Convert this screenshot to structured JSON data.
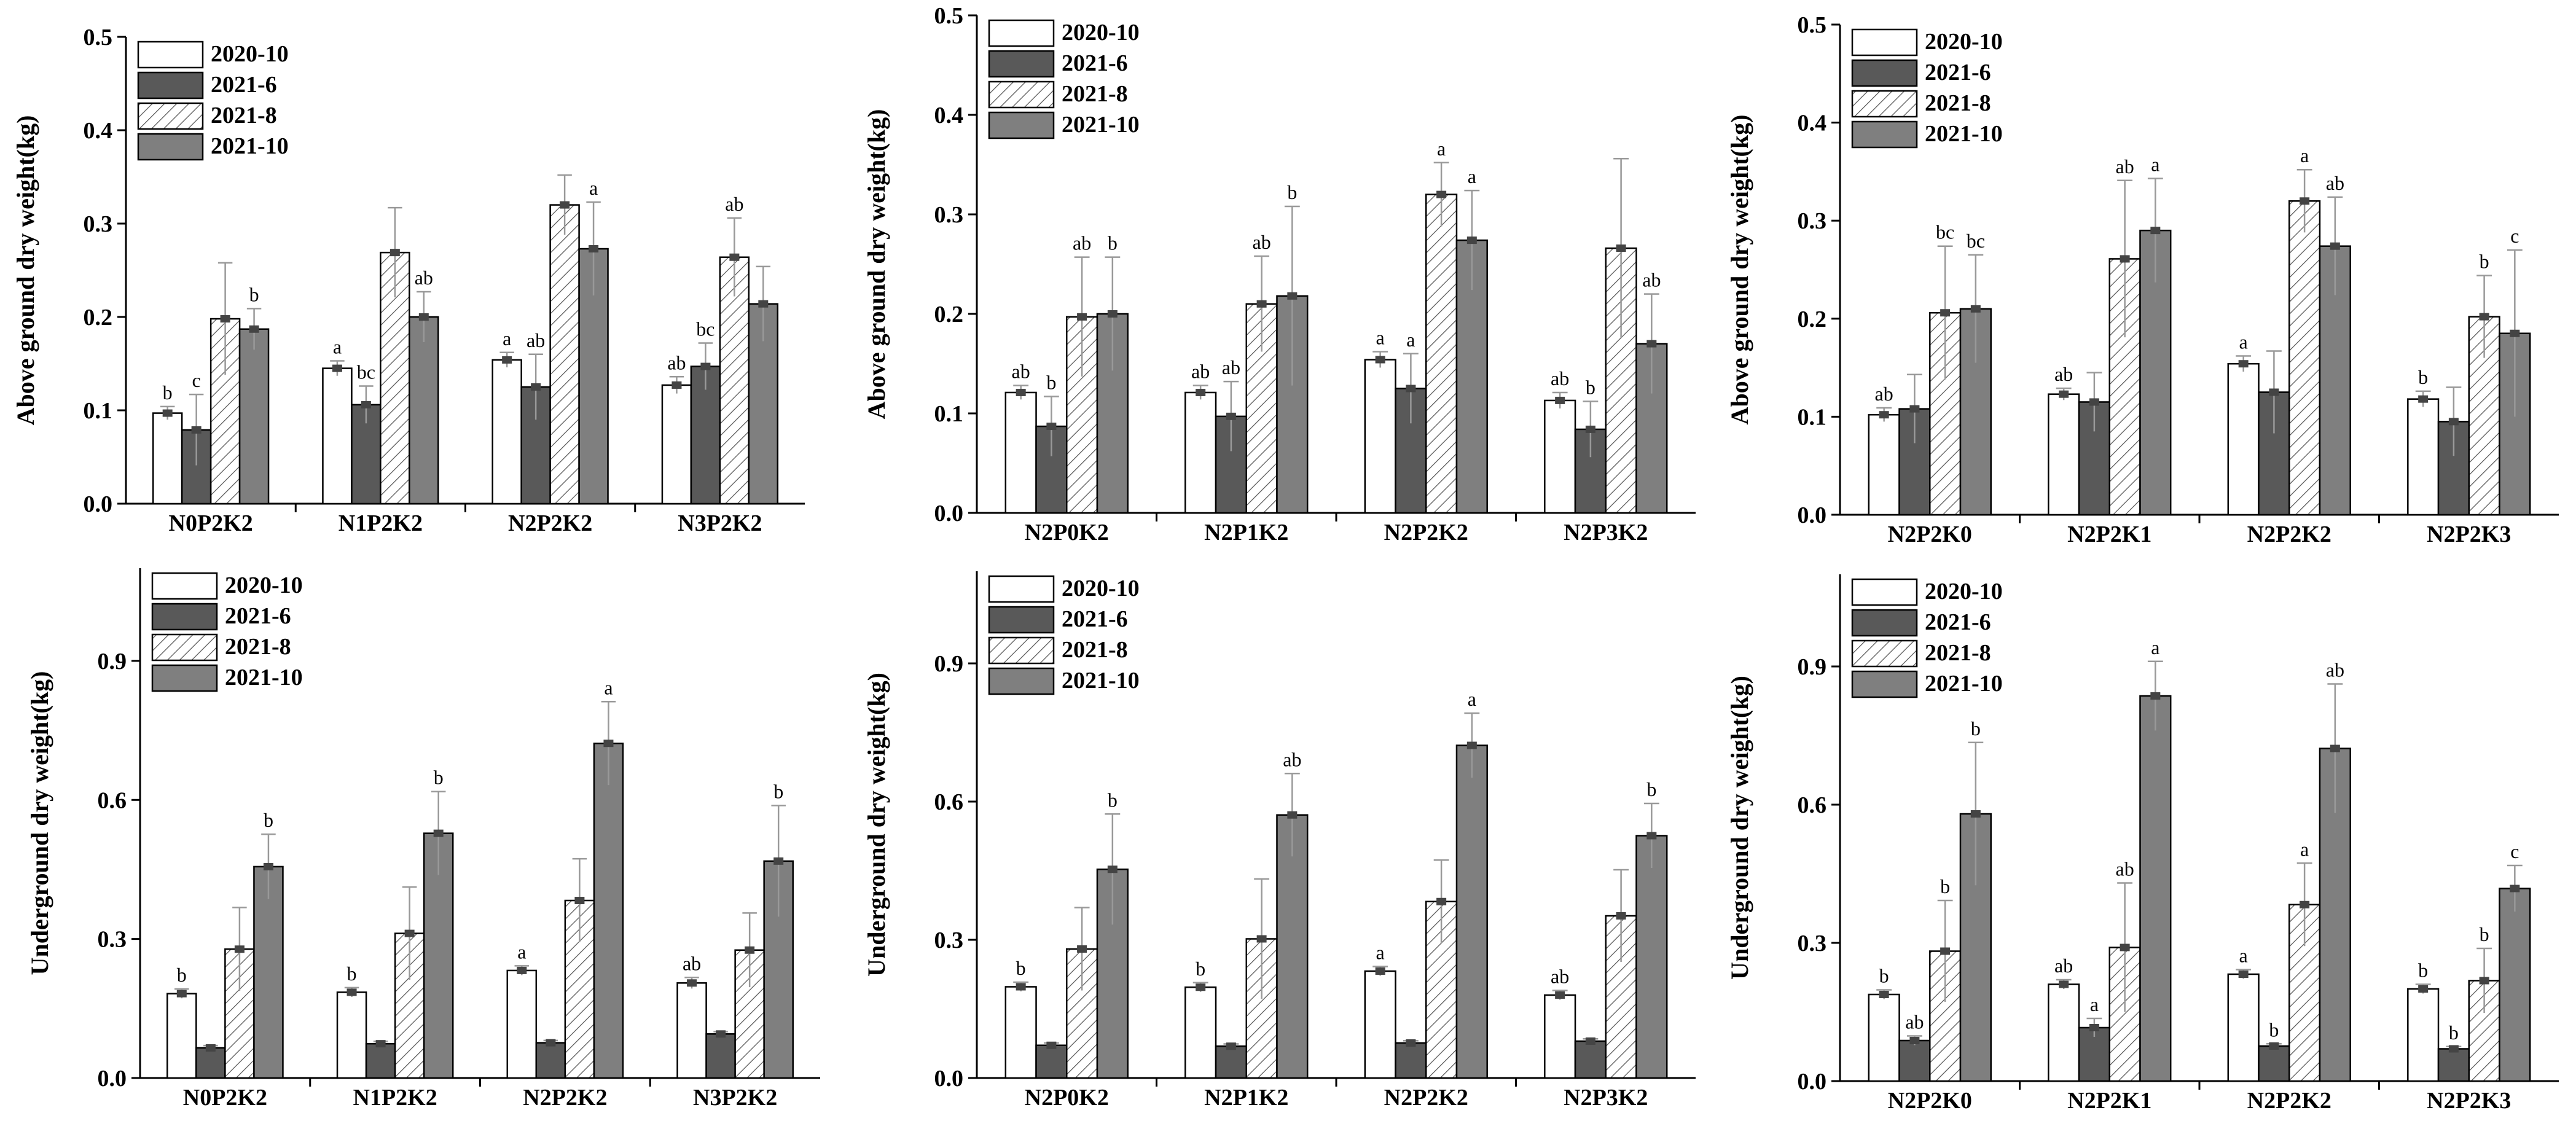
{
  "colors": {
    "2020-10": "#ffffff",
    "2021-6": "#595959",
    "2021-8": "hatched",
    "2021-10": "#7f7f7f",
    "axis": "#000000",
    "error_bar": "#999999"
  },
  "chart_data": [
    {
      "type": "bar",
      "panel": "top-left",
      "ylabel": "Above ground dry weight(kg)",
      "ylim": [
        0,
        0.5
      ],
      "yticks": [
        "0.0",
        "0.1",
        "0.2",
        "0.3",
        "0.4",
        "0.5"
      ],
      "categories": [
        "N0P2K2",
        "N1P2K2",
        "N2P2K2",
        "N3P2K2"
      ],
      "legend_position": "top-left",
      "series": [
        {
          "name": "2020-10",
          "values": [
            0.097,
            0.145,
            0.154,
            0.127
          ],
          "errors": [
            0.007,
            0.008,
            0.008,
            0.009
          ],
          "labels": [
            "b",
            "a",
            "a",
            "ab"
          ]
        },
        {
          "name": "2021-6",
          "values": [
            0.079,
            0.106,
            0.125,
            0.147
          ],
          "errors": [
            0.038,
            0.02,
            0.035,
            0.025
          ],
          "labels": [
            "c",
            "bc",
            "ab",
            "bc"
          ]
        },
        {
          "name": "2021-8",
          "values": [
            0.198,
            0.269,
            0.32,
            0.264
          ],
          "errors": [
            0.06,
            0.048,
            0.032,
            0.042
          ],
          "labels": [
            "",
            "",
            "",
            "ab"
          ]
        },
        {
          "name": "2021-10",
          "values": [
            0.187,
            0.2,
            0.273,
            0.214
          ],
          "errors": [
            0.022,
            0.027,
            0.05,
            0.04
          ],
          "labels": [
            "b",
            "ab",
            "a",
            ""
          ]
        }
      ]
    },
    {
      "type": "bar",
      "panel": "top-middle",
      "ylabel": "Above ground dry weight(kg)",
      "ylim": [
        0,
        0.5
      ],
      "yticks": [
        "0.0",
        "0.1",
        "0.2",
        "0.3",
        "0.4",
        "0.5"
      ],
      "categories": [
        "N2P0K2",
        "N2P1K2",
        "N2P2K2",
        "N2P3K2"
      ],
      "legend_position": "top-left",
      "series": [
        {
          "name": "2020-10",
          "values": [
            0.121,
            0.121,
            0.154,
            0.113
          ],
          "errors": [
            0.007,
            0.007,
            0.008,
            0.008
          ],
          "labels": [
            "ab",
            "ab",
            "a",
            "ab"
          ]
        },
        {
          "name": "2021-6",
          "values": [
            0.087,
            0.097,
            0.125,
            0.084
          ],
          "errors": [
            0.03,
            0.035,
            0.035,
            0.028
          ],
          "labels": [
            "b",
            "ab",
            "a",
            "b"
          ]
        },
        {
          "name": "2021-8",
          "values": [
            0.197,
            0.21,
            0.32,
            0.266
          ],
          "errors": [
            0.06,
            0.048,
            0.032,
            0.09
          ],
          "labels": [
            "ab",
            "ab",
            "a",
            ""
          ]
        },
        {
          "name": "2021-10",
          "values": [
            0.2,
            0.218,
            0.274,
            0.17
          ],
          "errors": [
            0.057,
            0.09,
            0.05,
            0.05
          ],
          "labels": [
            "b",
            "b",
            "a",
            "ab"
          ]
        }
      ]
    },
    {
      "type": "bar",
      "panel": "top-right",
      "ylabel": "Above ground dry weight(kg)",
      "ylim": [
        0,
        0.5
      ],
      "yticks": [
        "0.0",
        "0.1",
        "0.2",
        "0.3",
        "0.4",
        "0.5"
      ],
      "categories": [
        "N2P2K0",
        "N2P2K1",
        "N2P2K2",
        "N2P2K3"
      ],
      "legend_position": "top-left",
      "series": [
        {
          "name": "2020-10",
          "values": [
            0.102,
            0.123,
            0.154,
            0.118
          ],
          "errors": [
            0.007,
            0.006,
            0.008,
            0.008
          ],
          "labels": [
            "ab",
            "ab",
            "a",
            "b"
          ]
        },
        {
          "name": "2021-6",
          "values": [
            0.108,
            0.115,
            0.125,
            0.095
          ],
          "errors": [
            0.035,
            0.03,
            0.042,
            0.035
          ],
          "labels": [
            "",
            "",
            "",
            ""
          ]
        },
        {
          "name": "2021-8",
          "values": [
            0.206,
            0.261,
            0.32,
            0.202
          ],
          "errors": [
            0.068,
            0.08,
            0.032,
            0.042
          ],
          "labels": [
            "bc",
            "ab",
            "a",
            "b"
          ]
        },
        {
          "name": "2021-10",
          "values": [
            0.21,
            0.29,
            0.274,
            0.185
          ],
          "errors": [
            0.055,
            0.053,
            0.05,
            0.085
          ],
          "labels": [
            "bc",
            "a",
            "ab",
            "c"
          ]
        }
      ]
    },
    {
      "type": "bar",
      "panel": "bottom-left",
      "ylabel": "Underground dry weight(kg)",
      "ylim": [
        0,
        1.1
      ],
      "yticks": [
        "0.0",
        "0.3",
        "0.6",
        "0.9"
      ],
      "categories": [
        "N0P2K2",
        "N1P2K2",
        "N2P2K2",
        "N3P2K2"
      ],
      "legend_position": "top-left",
      "series": [
        {
          "name": "2020-10",
          "values": [
            0.182,
            0.185,
            0.232,
            0.205
          ],
          "errors": [
            0.01,
            0.01,
            0.01,
            0.012
          ],
          "labels": [
            "b",
            "b",
            "a",
            "ab"
          ]
        },
        {
          "name": "2021-6",
          "values": [
            0.065,
            0.074,
            0.076,
            0.095
          ],
          "errors": [
            0.005,
            0.005,
            0.005,
            0.005
          ],
          "labels": [
            "",
            "",
            "",
            ""
          ]
        },
        {
          "name": "2021-8",
          "values": [
            0.278,
            0.312,
            0.383,
            0.276
          ],
          "errors": [
            0.09,
            0.1,
            0.09,
            0.08
          ],
          "labels": [
            "",
            "",
            "",
            ""
          ]
        },
        {
          "name": "2021-10",
          "values": [
            0.456,
            0.528,
            0.722,
            0.468
          ],
          "errors": [
            0.07,
            0.09,
            0.09,
            0.12
          ],
          "labels": [
            "b",
            "b",
            "a",
            "b"
          ]
        }
      ]
    },
    {
      "type": "bar",
      "panel": "bottom-middle",
      "ylabel": "Underground dry weight(kg)",
      "ylim": [
        0,
        1.1
      ],
      "yticks": [
        "0.0",
        "0.3",
        "0.6",
        "0.9"
      ],
      "categories": [
        "N2P0K2",
        "N2P1K2",
        "N2P2K2",
        "N2P3K2"
      ],
      "legend_position": "top-left",
      "series": [
        {
          "name": "2020-10",
          "values": [
            0.198,
            0.197,
            0.232,
            0.18
          ],
          "errors": [
            0.01,
            0.01,
            0.01,
            0.01
          ],
          "labels": [
            "b",
            "b",
            "a",
            "ab"
          ]
        },
        {
          "name": "2021-6",
          "values": [
            0.071,
            0.069,
            0.076,
            0.08
          ],
          "errors": [
            0.005,
            0.005,
            0.005,
            0.005
          ],
          "labels": [
            "",
            "",
            "",
            ""
          ]
        },
        {
          "name": "2021-8",
          "values": [
            0.28,
            0.302,
            0.383,
            0.352
          ],
          "errors": [
            0.09,
            0.13,
            0.09,
            0.1
          ],
          "labels": [
            "",
            "",
            "",
            ""
          ]
        },
        {
          "name": "2021-10",
          "values": [
            0.453,
            0.571,
            0.722,
            0.526
          ],
          "errors": [
            0.12,
            0.09,
            0.07,
            0.07
          ],
          "labels": [
            "b",
            "ab",
            "a",
            "b"
          ]
        }
      ]
    },
    {
      "type": "bar",
      "panel": "bottom-right",
      "ylabel": "Underground dry weight(kg)",
      "ylim": [
        0,
        1.1
      ],
      "yticks": [
        "0.0",
        "0.3",
        "0.6",
        "0.9"
      ],
      "categories": [
        "N2P2K0",
        "N2P2K1",
        "N2P2K2",
        "N2P2K3"
      ],
      "legend_position": "top-left",
      "series": [
        {
          "name": "2020-10",
          "values": [
            0.188,
            0.21,
            0.232,
            0.2
          ],
          "errors": [
            0.01,
            0.01,
            0.01,
            0.01
          ],
          "labels": [
            "b",
            "ab",
            "a",
            "b"
          ]
        },
        {
          "name": "2021-6",
          "values": [
            0.088,
            0.116,
            0.076,
            0.07
          ],
          "errors": [
            0.01,
            0.02,
            0.005,
            0.005
          ],
          "labels": [
            "ab",
            "a",
            "b",
            "b"
          ]
        },
        {
          "name": "2021-8",
          "values": [
            0.282,
            0.29,
            0.383,
            0.218
          ],
          "errors": [
            0.11,
            0.14,
            0.09,
            0.07
          ],
          "labels": [
            "b",
            "ab",
            "a",
            "b"
          ]
        },
        {
          "name": "2021-10",
          "values": [
            0.58,
            0.836,
            0.722,
            0.418
          ],
          "errors": [
            0.155,
            0.075,
            0.14,
            0.05
          ],
          "labels": [
            "b",
            "a",
            "ab",
            "c"
          ]
        }
      ]
    }
  ]
}
